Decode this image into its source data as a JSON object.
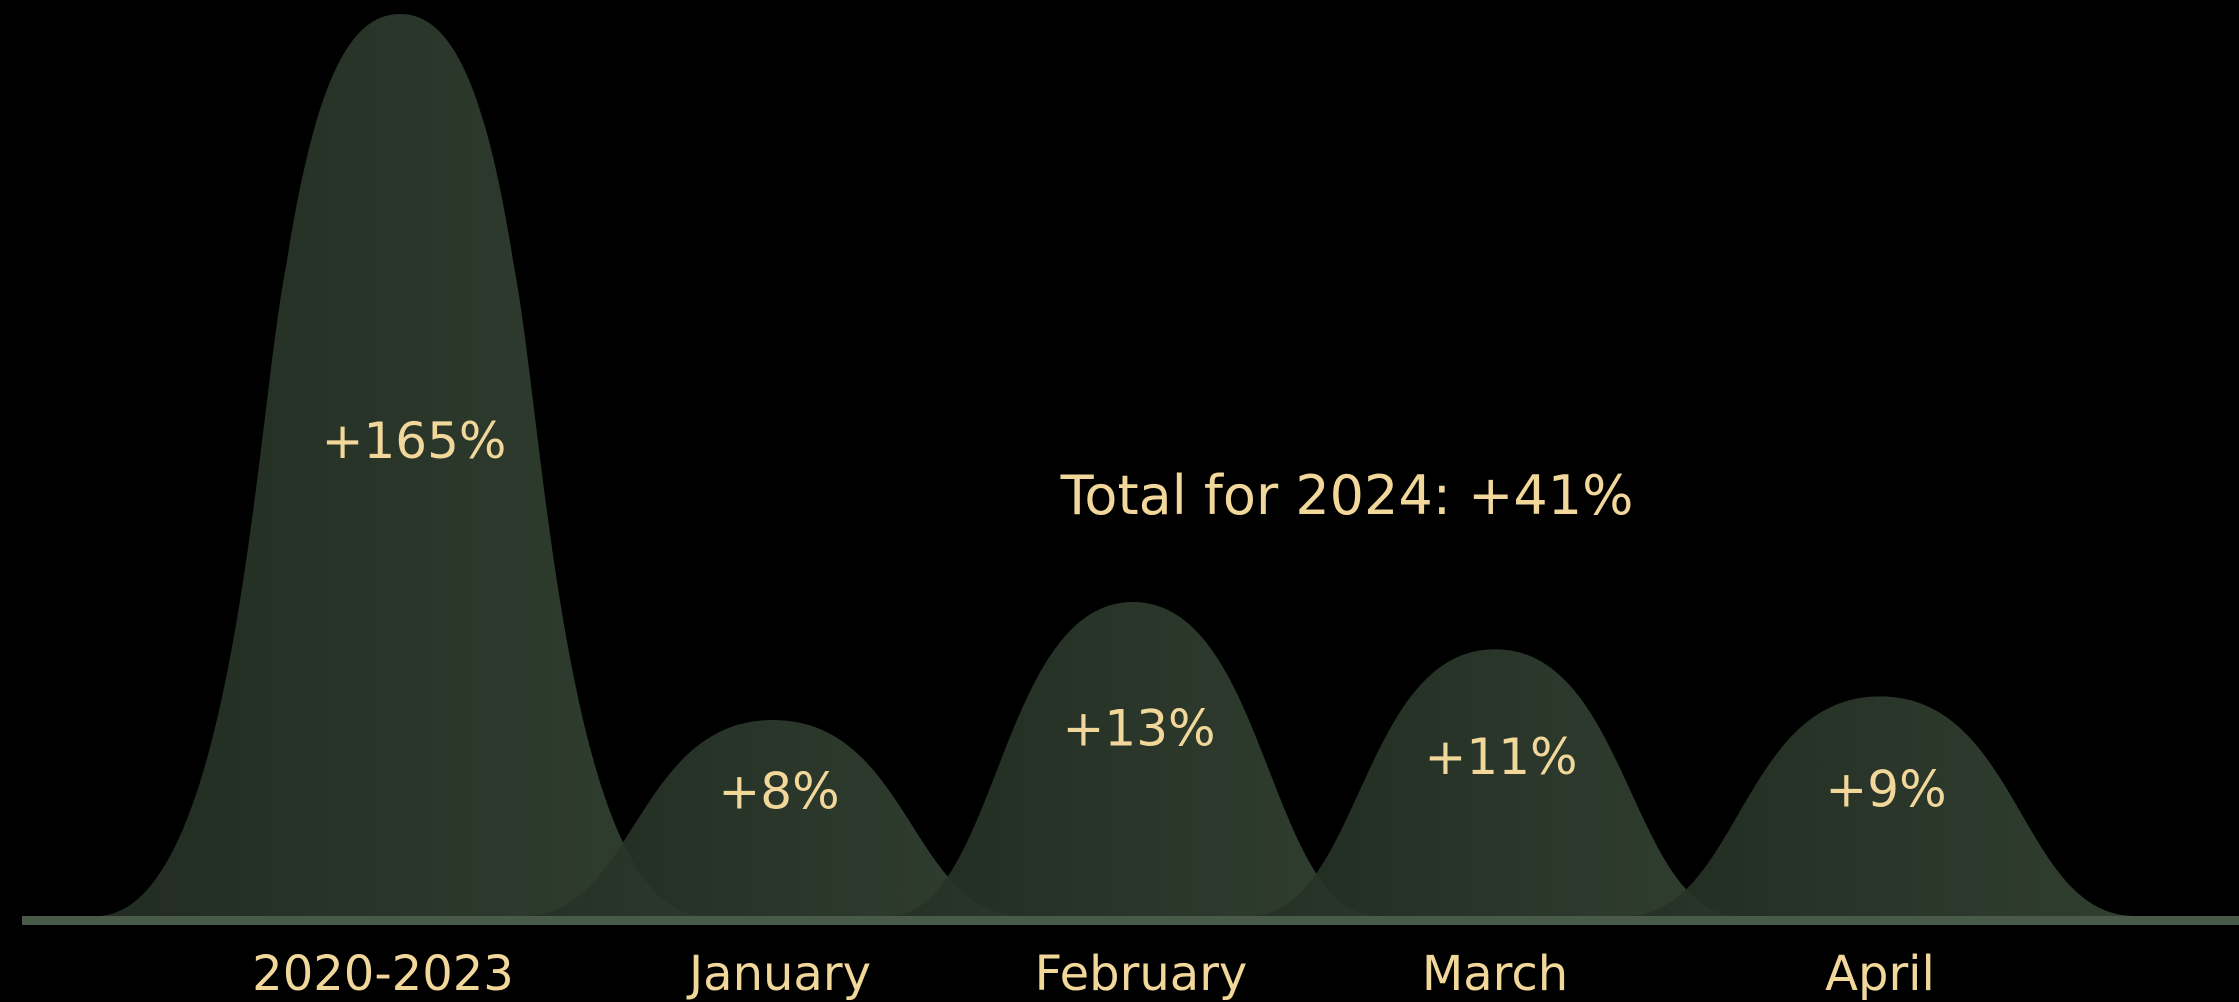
{
  "colors": {
    "background": "#000000",
    "hump_fill": "#2c3a2c",
    "hump_fill_light": "#354535",
    "baseline": "#4a5a48",
    "text": "#f2d79b"
  },
  "chart_data": {
    "type": "area",
    "title": "Total for 2024: +41%",
    "categories": [
      "2020-2023",
      "January",
      "February",
      "March",
      "April"
    ],
    "values": [
      165,
      8,
      13,
      11,
      9
    ],
    "value_labels": [
      "+165%",
      "+8%",
      "+13%",
      "+11%",
      "+9%"
    ],
    "unit": "%",
    "grid": false,
    "legend": "none"
  }
}
